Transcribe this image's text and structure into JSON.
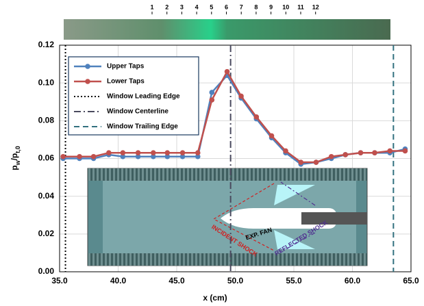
{
  "chart_data": {
    "type": "line",
    "y_label_parts": [
      "p",
      "w",
      "/p",
      "t,0"
    ],
    "x_label": "x (cm)",
    "tap_labels": [
      "1",
      "2",
      "3",
      "4",
      "5",
      "6",
      "7",
      "8",
      "9",
      "10",
      "11",
      "12"
    ],
    "inset_labels": [
      "EXP. FAN",
      "INCIDENT SHOCK",
      "REFLECTED SHOCK"
    ],
    "x": [
      35.3,
      36.7,
      37.9,
      39.2,
      40.4,
      41.7,
      43.0,
      44.2,
      45.5,
      46.8,
      48.0,
      49.3,
      50.5,
      51.8,
      53.1,
      54.3,
      55.6,
      56.9,
      58.2,
      59.4,
      60.7,
      61.9,
      63.2,
      64.5
    ],
    "series": [
      {
        "name": "Upper Taps",
        "color": "#4f81bd",
        "values": [
          0.06,
          0.06,
          0.06,
          0.062,
          0.061,
          0.061,
          0.061,
          0.061,
          0.061,
          0.061,
          0.095,
          0.104,
          0.092,
          0.081,
          0.071,
          0.063,
          0.057,
          0.058,
          0.06,
          0.062,
          0.063,
          0.063,
          0.063,
          0.065
        ]
      },
      {
        "name": "Lower Taps",
        "color": "#c0504d",
        "values": [
          0.061,
          0.061,
          0.061,
          0.063,
          0.063,
          0.063,
          0.063,
          0.063,
          0.063,
          0.063,
          0.091,
          0.106,
          0.093,
          0.082,
          0.072,
          0.064,
          0.058,
          0.058,
          0.061,
          0.062,
          0.063,
          0.063,
          0.064,
          0.064
        ]
      }
    ],
    "reference_lines": [
      {
        "name": "Window Leading Edge",
        "x": 35.5,
        "color": "#000000",
        "dash": "2,3"
      },
      {
        "name": "Window Centerline",
        "x": 49.6,
        "color": "#4a4a5e",
        "dash": "10,4,2,4"
      },
      {
        "name": "Window Trailing Edge",
        "x": 63.5,
        "color": "#31707e",
        "dash": "8,5"
      }
    ],
    "xlim": [
      35,
      65
    ],
    "xticks": [
      {
        "value": 35,
        "label": "35.0"
      },
      {
        "value": 40,
        "label": "40.0"
      },
      {
        "value": 45,
        "label": "45.0"
      },
      {
        "value": 50,
        "label": "50.0"
      },
      {
        "value": 55,
        "label": "55.0"
      },
      {
        "value": 60,
        "label": "60.0"
      },
      {
        "value": 65,
        "label": "65.0"
      }
    ],
    "ylim": [
      0,
      0.12
    ],
    "yticks": [
      {
        "value": 0,
        "label": "0.00"
      },
      {
        "value": 0.02,
        "label": "0.02"
      },
      {
        "value": 0.04,
        "label": "0.04"
      },
      {
        "value": 0.06,
        "label": "0.06"
      },
      {
        "value": 0.08,
        "label": "0.08"
      },
      {
        "value": 0.1,
        "label": "0.10"
      },
      {
        "value": 0.12,
        "label": "0.12"
      }
    ],
    "grid": true,
    "legend": "upper left"
  }
}
